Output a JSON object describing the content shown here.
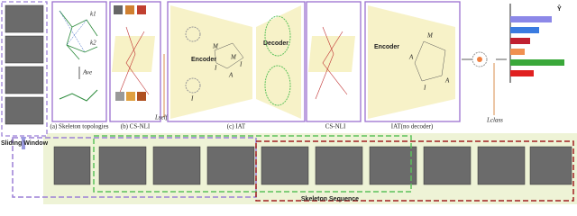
{
  "sliding_window": "Sliding Window",
  "panels": {
    "a": {
      "caption": "(a) Skeleton topologies",
      "labels": [
        "k1",
        "k2",
        "Ave"
      ]
    },
    "b": {
      "caption": "(b) CS-NLI"
    },
    "c": {
      "caption": "(c) IAT",
      "encoder": "Encoder",
      "decoder": "Decoder",
      "nodes": [
        "M",
        "I",
        "M",
        "I",
        "A",
        "I"
      ]
    },
    "d": {
      "caption": "CS-NLI"
    },
    "e": {
      "caption": "IAT(no decoder)",
      "encoder": "Encoder",
      "nodes": [
        "M",
        "A",
        "I",
        "A"
      ]
    }
  },
  "losses": {
    "self": "Lself",
    "class": "Lclass"
  },
  "output": "Ŷ",
  "sequence": "Skeleton Sequence"
}
